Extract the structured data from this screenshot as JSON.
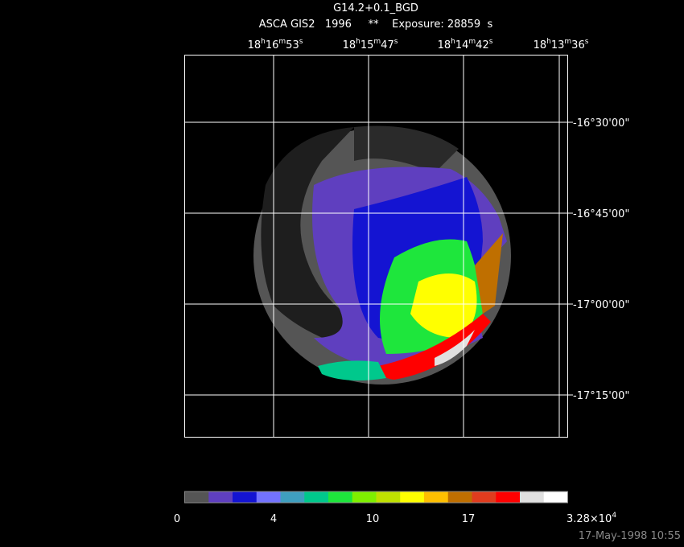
{
  "header": {
    "title": "G14.2+0.1_BGD",
    "subtitle": "ASCA GIS2   1996     **    Exposure: 28859  s"
  },
  "ra_ticks": [
    [
      {
        "t": "18"
      },
      {
        "t": "h",
        "sup": true
      },
      {
        "t": "16"
      },
      {
        "t": "m",
        "sup": true
      },
      {
        "t": "53"
      },
      {
        "t": "s",
        "sup": true
      }
    ],
    [
      {
        "t": "18"
      },
      {
        "t": "h",
        "sup": true
      },
      {
        "t": "15"
      },
      {
        "t": "m",
        "sup": true
      },
      {
        "t": "47"
      },
      {
        "t": "s",
        "sup": true
      }
    ],
    [
      {
        "t": "18"
      },
      {
        "t": "h",
        "sup": true
      },
      {
        "t": "14"
      },
      {
        "t": "m",
        "sup": true
      },
      {
        "t": "42"
      },
      {
        "t": "s",
        "sup": true
      }
    ],
    [
      {
        "t": "18"
      },
      {
        "t": "h",
        "sup": true
      },
      {
        "t": "13"
      },
      {
        "t": "m",
        "sup": true
      },
      {
        "t": "36"
      },
      {
        "t": "s",
        "sup": true
      }
    ]
  ],
  "dec_ticks": [
    "-16°30'00\"",
    "-16°45'00\"",
    "-17°00'00\"",
    "-17°15'00\""
  ],
  "colorbar": {
    "colors": [
      "#555555",
      "#5f3fbf",
      "#1414d2",
      "#7373ff",
      "#3f9fbf",
      "#00c88c",
      "#1ee63c",
      "#7ff000",
      "#bfe000",
      "#ffff00",
      "#ffbf00",
      "#bf6f00",
      "#e03c1e",
      "#ff0000",
      "#e0e0e0",
      "#ffffff"
    ],
    "labels": [
      [
        {
          "t": "0"
        }
      ],
      [
        {
          "t": "4"
        }
      ],
      [
        {
          "t": "10"
        }
      ],
      [
        {
          "t": "17"
        }
      ],
      [
        {
          "t": "3.28×10"
        },
        {
          "t": "4",
          "sup": true
        }
      ]
    ]
  },
  "footer": "17-May-1998 10:55"
}
